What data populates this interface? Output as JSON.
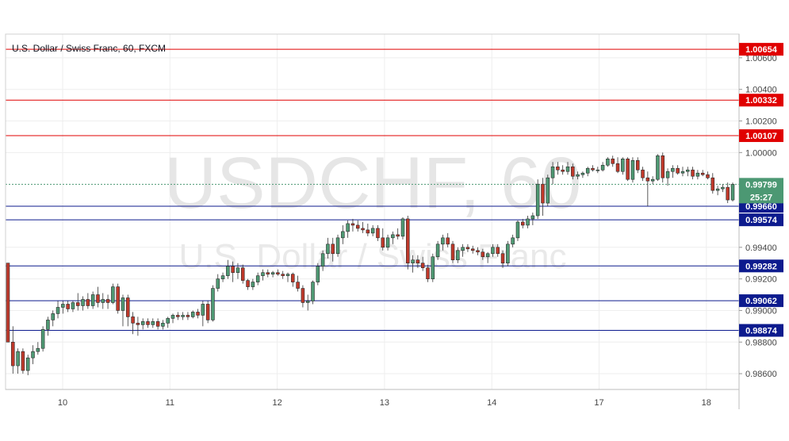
{
  "chart_data": {
    "type": "candlestick",
    "title": "U.S. Dollar / Swiss Franc, 60, FXCM",
    "watermark_symbol": "USDCHF, 60",
    "watermark_name": "U.S. Dollar / Swiss Franc",
    "ylim": [
      0.985,
      1.0075
    ],
    "price_ticks": [
      "1.00600",
      "1.00400",
      "1.00200",
      "1.00000",
      "0.99400",
      "0.99200",
      "0.99000",
      "0.98800",
      "0.98600"
    ],
    "date_labels": [
      "10",
      "11",
      "12",
      "13",
      "14",
      "17",
      "18"
    ],
    "current_price": "0.99799",
    "countdown": "25:27",
    "levels": [
      {
        "value": "1.00654",
        "kind": "resistance"
      },
      {
        "value": "1.00332",
        "kind": "resistance"
      },
      {
        "value": "1.00107",
        "kind": "resistance"
      },
      {
        "value": "0.99660",
        "kind": "support"
      },
      {
        "value": "0.99574",
        "kind": "support"
      },
      {
        "value": "0.99282",
        "kind": "support"
      },
      {
        "value": "0.99062",
        "kind": "support"
      },
      {
        "value": "0.98874",
        "kind": "support"
      }
    ],
    "candles": [
      [
        0.993,
        0.993,
        0.988,
        0.988
      ],
      [
        0.988,
        0.989,
        0.986,
        0.9865
      ],
      [
        0.9865,
        0.9876,
        0.986,
        0.9874
      ],
      [
        0.9874,
        0.9876,
        0.986,
        0.9862
      ],
      [
        0.9862,
        0.9872,
        0.9859,
        0.987
      ],
      [
        0.987,
        0.9878,
        0.9866,
        0.9874
      ],
      [
        0.9874,
        0.988,
        0.9872,
        0.9876
      ],
      [
        0.9876,
        0.989,
        0.9874,
        0.9888
      ],
      [
        0.9888,
        0.9896,
        0.9884,
        0.9894
      ],
      [
        0.9894,
        0.99,
        0.989,
        0.9898
      ],
      [
        0.9898,
        0.9906,
        0.9895,
        0.9902
      ],
      [
        0.9902,
        0.9906,
        0.9898,
        0.9904
      ],
      [
        0.9904,
        0.9906,
        0.9899,
        0.9901
      ],
      [
        0.9901,
        0.9906,
        0.9899,
        0.9905
      ],
      [
        0.9905,
        0.9911,
        0.99,
        0.9903
      ],
      [
        0.9903,
        0.9909,
        0.99,
        0.9907
      ],
      [
        0.9907,
        0.9911,
        0.9901,
        0.9903
      ],
      [
        0.9903,
        0.9912,
        0.9901,
        0.991
      ],
      [
        0.991,
        0.9915,
        0.9902,
        0.9905
      ],
      [
        0.9905,
        0.9911,
        0.9901,
        0.9907
      ],
      [
        0.9907,
        0.991,
        0.9901,
        0.9905
      ],
      [
        0.9905,
        0.9917,
        0.9904,
        0.9915
      ],
      [
        0.9915,
        0.9917,
        0.9898,
        0.99
      ],
      [
        0.99,
        0.991,
        0.989,
        0.9908
      ],
      [
        0.9908,
        0.991,
        0.989,
        0.9896
      ],
      [
        0.9896,
        0.9899,
        0.9885,
        0.9892
      ],
      [
        0.9892,
        0.9896,
        0.9884,
        0.9891
      ],
      [
        0.9891,
        0.9895,
        0.9888,
        0.9893
      ],
      [
        0.9893,
        0.9895,
        0.9889,
        0.9891
      ],
      [
        0.9891,
        0.9895,
        0.9889,
        0.9893
      ],
      [
        0.9893,
        0.9895,
        0.9888,
        0.989
      ],
      [
        0.989,
        0.9894,
        0.9888,
        0.9892
      ],
      [
        0.9892,
        0.9896,
        0.9889,
        0.9895
      ],
      [
        0.9895,
        0.9898,
        0.9892,
        0.9897
      ],
      [
        0.9897,
        0.9899,
        0.9894,
        0.9896
      ],
      [
        0.9896,
        0.9899,
        0.9894,
        0.9897
      ],
      [
        0.9897,
        0.9899,
        0.9894,
        0.9896
      ],
      [
        0.9896,
        0.99,
        0.9895,
        0.9899
      ],
      [
        0.9899,
        0.9901,
        0.9895,
        0.9897
      ],
      [
        0.9897,
        0.9906,
        0.989,
        0.9904
      ],
      [
        0.9904,
        0.9906,
        0.9892,
        0.9894
      ],
      [
        0.9894,
        0.9916,
        0.9893,
        0.9914
      ],
      [
        0.9914,
        0.9923,
        0.9912,
        0.992
      ],
      [
        0.992,
        0.9924,
        0.9918,
        0.9922
      ],
      [
        0.9922,
        0.9932,
        0.992,
        0.9928
      ],
      [
        0.9928,
        0.9931,
        0.9918,
        0.9924
      ],
      [
        0.9924,
        0.993,
        0.992,
        0.9927
      ],
      [
        0.9927,
        0.9929,
        0.9917,
        0.9919
      ],
      [
        0.9919,
        0.992,
        0.9913,
        0.9915
      ],
      [
        0.9915,
        0.992,
        0.9913,
        0.9918
      ],
      [
        0.9918,
        0.9924,
        0.9916,
        0.9922
      ],
      [
        0.9922,
        0.9926,
        0.9919,
        0.9924
      ],
      [
        0.9924,
        0.9926,
        0.9921,
        0.9923
      ],
      [
        0.9923,
        0.9925,
        0.9921,
        0.9924
      ],
      [
        0.9924,
        0.9926,
        0.9922,
        0.9923
      ],
      [
        0.9923,
        0.9925,
        0.992,
        0.9922
      ],
      [
        0.9922,
        0.9924,
        0.9918,
        0.9923
      ],
      [
        0.9923,
        0.9924,
        0.9915,
        0.9918
      ],
      [
        0.9918,
        0.9922,
        0.9912,
        0.9914
      ],
      [
        0.9914,
        0.9916,
        0.9902,
        0.9905
      ],
      [
        0.9905,
        0.991,
        0.99,
        0.9906
      ],
      [
        0.9906,
        0.9919,
        0.9904,
        0.9918
      ],
      [
        0.9918,
        0.993,
        0.9916,
        0.9928
      ],
      [
        0.9928,
        0.9938,
        0.9925,
        0.9936
      ],
      [
        0.9936,
        0.9946,
        0.9933,
        0.9942
      ],
      [
        0.9942,
        0.9946,
        0.9931,
        0.9936
      ],
      [
        0.9936,
        0.9948,
        0.9934,
        0.9946
      ],
      [
        0.9946,
        0.9954,
        0.9942,
        0.995
      ],
      [
        0.995,
        0.9957,
        0.9946,
        0.9955
      ],
      [
        0.9955,
        0.9958,
        0.995,
        0.9954
      ],
      [
        0.9954,
        0.9957,
        0.995,
        0.9952
      ],
      [
        0.9952,
        0.9956,
        0.9949,
        0.9951
      ],
      [
        0.9951,
        0.9955,
        0.9947,
        0.9949
      ],
      [
        0.9949,
        0.9954,
        0.9947,
        0.9952
      ],
      [
        0.9952,
        0.9954,
        0.9944,
        0.9946
      ],
      [
        0.9946,
        0.9952,
        0.9938,
        0.994
      ],
      [
        0.994,
        0.9948,
        0.9938,
        0.9946
      ],
      [
        0.9946,
        0.995,
        0.9942,
        0.9948
      ],
      [
        0.9948,
        0.9952,
        0.9945,
        0.9947
      ],
      [
        0.9947,
        0.9959,
        0.9945,
        0.9958
      ],
      [
        0.9958,
        0.996,
        0.9926,
        0.993
      ],
      [
        0.993,
        0.9935,
        0.9924,
        0.9932
      ],
      [
        0.9932,
        0.9935,
        0.9927,
        0.993
      ],
      [
        0.993,
        0.9934,
        0.9925,
        0.9927
      ],
      [
        0.9927,
        0.9929,
        0.9918,
        0.992
      ],
      [
        0.992,
        0.9936,
        0.9918,
        0.9934
      ],
      [
        0.9934,
        0.9944,
        0.9932,
        0.9942
      ],
      [
        0.9942,
        0.9948,
        0.9938,
        0.9946
      ],
      [
        0.9946,
        0.9949,
        0.994,
        0.9942
      ],
      [
        0.9942,
        0.9944,
        0.993,
        0.9932
      ],
      [
        0.9932,
        0.994,
        0.993,
        0.9938
      ],
      [
        0.9938,
        0.9942,
        0.9934,
        0.994
      ],
      [
        0.994,
        0.9942,
        0.9937,
        0.9939
      ],
      [
        0.9939,
        0.9941,
        0.9936,
        0.9938
      ],
      [
        0.9938,
        0.994,
        0.9935,
        0.9937
      ],
      [
        0.9937,
        0.9939,
        0.9932,
        0.9934
      ],
      [
        0.9934,
        0.9937,
        0.993,
        0.9936
      ],
      [
        0.9936,
        0.9942,
        0.9934,
        0.994
      ],
      [
        0.994,
        0.9942,
        0.9934,
        0.9936
      ],
      [
        0.9936,
        0.9938,
        0.9927,
        0.993
      ],
      [
        0.993,
        0.9944,
        0.9928,
        0.9942
      ],
      [
        0.9942,
        0.9948,
        0.994,
        0.9946
      ],
      [
        0.9946,
        0.9957,
        0.9944,
        0.9956
      ],
      [
        0.9956,
        0.9958,
        0.9952,
        0.9954
      ],
      [
        0.9954,
        0.996,
        0.9952,
        0.9958
      ],
      [
        0.9958,
        0.9962,
        0.9954,
        0.996
      ],
      [
        0.996,
        0.9983,
        0.9958,
        0.998
      ],
      [
        0.998,
        0.9984,
        0.996,
        0.9968
      ],
      [
        0.9968,
        0.9986,
        0.9966,
        0.9984
      ],
      [
        0.9984,
        0.9994,
        0.998,
        0.9991
      ],
      [
        0.9991,
        0.9994,
        0.9986,
        0.9989
      ],
      [
        0.9989,
        0.9992,
        0.9986,
        0.9988
      ],
      [
        0.9988,
        0.9994,
        0.9986,
        0.9991
      ],
      [
        0.9991,
        0.9993,
        0.9983,
        0.9985
      ],
      [
        0.9985,
        0.9988,
        0.9983,
        0.9986
      ],
      [
        0.9986,
        0.9988,
        0.9984,
        0.9987
      ],
      [
        0.9987,
        0.9991,
        0.9985,
        0.999
      ],
      [
        0.999,
        0.9992,
        0.9988,
        0.9989
      ],
      [
        0.9989,
        0.9991,
        0.9987,
        0.9989
      ],
      [
        0.9989,
        0.9994,
        0.9988,
        0.9992
      ],
      [
        0.9992,
        0.9997,
        0.9991,
        0.9996
      ],
      [
        0.9996,
        0.9998,
        0.9991,
        0.9993
      ],
      [
        0.9993,
        0.9997,
        0.9987,
        0.9988
      ],
      [
        0.9988,
        0.9997,
        0.9986,
        0.9996
      ],
      [
        0.9996,
        0.9997,
        0.9982,
        0.9983
      ],
      [
        0.9983,
        0.9997,
        0.9981,
        0.9995
      ],
      [
        0.9995,
        0.9997,
        0.9987,
        0.9989
      ],
      [
        0.9989,
        0.9991,
        0.9982,
        0.9984
      ],
      [
        0.9984,
        0.9988,
        0.9966,
        0.9982
      ],
      [
        0.9982,
        0.9985,
        0.998,
        0.9983
      ],
      [
        0.9983,
        0.9999,
        0.9982,
        0.9998
      ],
      [
        0.9998,
        1.0,
        0.9981,
        0.9984
      ],
      [
        0.9984,
        0.999,
        0.9979,
        0.9988
      ],
      [
        0.9988,
        0.9992,
        0.9984,
        0.999
      ],
      [
        0.999,
        0.9992,
        0.9986,
        0.9987
      ],
      [
        0.9987,
        0.9991,
        0.9985,
        0.9988
      ],
      [
        0.9988,
        0.9991,
        0.9985,
        0.9989
      ],
      [
        0.9989,
        0.9991,
        0.9983,
        0.9985
      ],
      [
        0.9985,
        0.9989,
        0.9983,
        0.9987
      ],
      [
        0.9987,
        0.9989,
        0.9985,
        0.9986
      ],
      [
        0.9986,
        0.9988,
        0.9983,
        0.9984
      ],
      [
        0.9984,
        0.9987,
        0.9974,
        0.9976
      ],
      [
        0.9976,
        0.9979,
        0.9973,
        0.9977
      ],
      [
        0.9977,
        0.998,
        0.9975,
        0.9978
      ],
      [
        0.9978,
        0.9981,
        0.9968,
        0.997
      ],
      [
        0.997,
        0.9981,
        0.9969,
        0.99799
      ]
    ]
  },
  "colors": {
    "up": "#4f9a74",
    "down": "#c0392b",
    "resistance": "#e00000",
    "support": "#0d1b8e",
    "price_tag": "#4c9873",
    "background": "#ffffff",
    "grid": "#eeeeee"
  }
}
